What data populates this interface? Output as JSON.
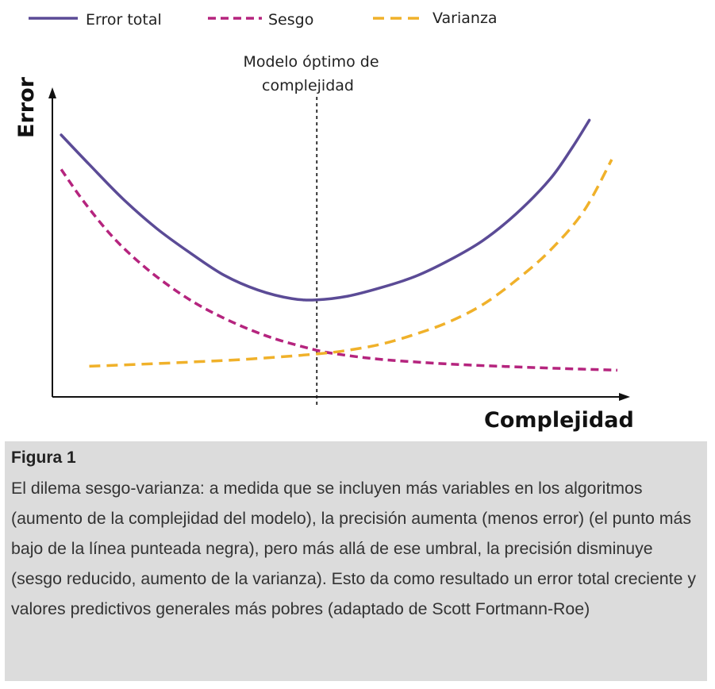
{
  "chart_data": {
    "type": "line",
    "xlabel": "Complejidad",
    "ylabel": "Error",
    "xlim": [
      0,
      100
    ],
    "ylim": [
      0,
      100
    ],
    "grid": false,
    "legend_position": "top",
    "annotation": {
      "text_line1": "Modelo óptimo de",
      "text_line2": "complejidad",
      "x": 46.5
    },
    "series": [
      {
        "name": "Error total",
        "style": "solid",
        "color": "#5b4b96",
        "x": [
          1,
          6,
          12,
          18,
          24,
          30,
          36,
          42,
          46.5,
          52,
          58,
          64,
          70,
          76,
          82,
          88,
          92,
          95
        ],
        "y": [
          100,
          88,
          74,
          62,
          52,
          43,
          37,
          33.5,
          33,
          34.5,
          38,
          42.5,
          49,
          57,
          68,
          82,
          95,
          106
        ]
      },
      {
        "name": "Sesgo",
        "style": "dashed",
        "color": "#b5247e",
        "x": [
          1,
          5,
          10,
          15,
          20,
          25,
          30,
          35,
          40,
          46.5,
          50,
          55,
          60,
          70,
          80,
          90,
          100
        ],
        "y": [
          86,
          73,
          59,
          48,
          39,
          31.5,
          25.5,
          20.5,
          16.5,
          12.5,
          11,
          9.5,
          8.4,
          6.9,
          5.9,
          5.1,
          4.4
        ]
      },
      {
        "name": "Varianza",
        "style": "dashed",
        "color": "#f0b12a",
        "x": [
          6,
          15,
          25,
          35,
          46.5,
          52,
          58,
          64,
          70,
          76,
          82,
          88,
          94,
          99
        ],
        "y": [
          6,
          6.8,
          7.8,
          9,
          11,
          12.5,
          15,
          19,
          24,
          31,
          41,
          53,
          69,
          90
        ]
      }
    ]
  },
  "caption": {
    "title": "Figura 1",
    "text": "El dilema sesgo-varianza: a medida que se incluyen más variables en los algoritmos (aumento de la complejidad del modelo), la precisión aumenta (menos error) (el punto más bajo de la línea punteada negra), pero más allá de ese umbral, la precisión disminuye (sesgo reducido, aumento de la varianza). Esto da como resultado un error total creciente y valores predictivos generales más pobres (adaptado de Scott Fortmann-Roe)"
  }
}
